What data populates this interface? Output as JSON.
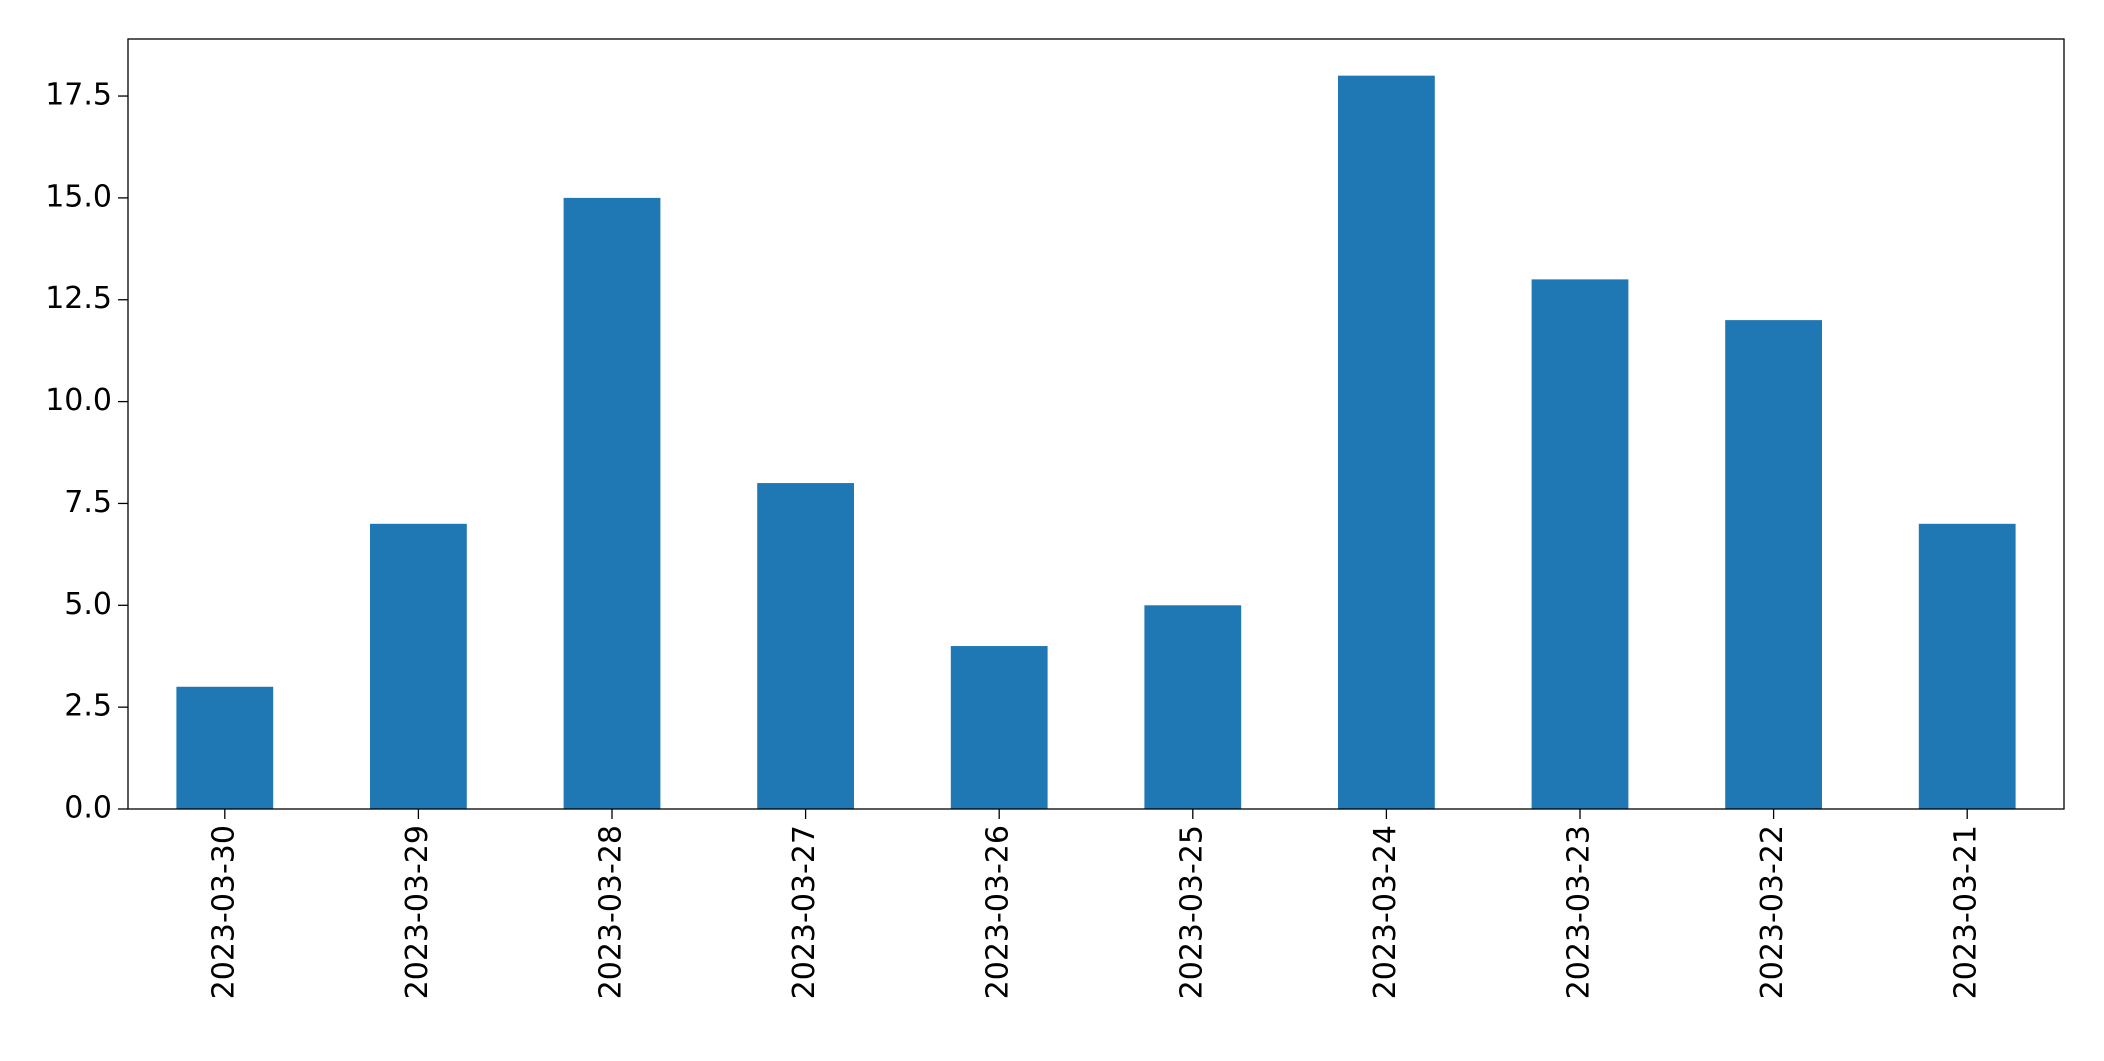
{
  "chart_data": {
    "type": "bar",
    "categories": [
      "2023-03-30",
      "2023-03-29",
      "2023-03-28",
      "2023-03-27",
      "2023-03-26",
      "2023-03-25",
      "2023-03-24",
      "2023-03-23",
      "2023-03-22",
      "2023-03-21"
    ],
    "values": [
      3,
      7,
      15,
      8,
      4,
      5,
      18,
      13,
      12,
      7
    ],
    "color": "#1f77b4",
    "ylim": [
      0,
      18.9
    ],
    "yticks": [
      {
        "value": 0,
        "label": "0.0"
      },
      2.5,
      {
        "value": 5,
        "label": "5.0"
      },
      7.5,
      {
        "value": 10,
        "label": "10.0"
      },
      12.5,
      {
        "value": 15,
        "label": "15.0"
      },
      17.5
    ],
    "grid": false
  }
}
